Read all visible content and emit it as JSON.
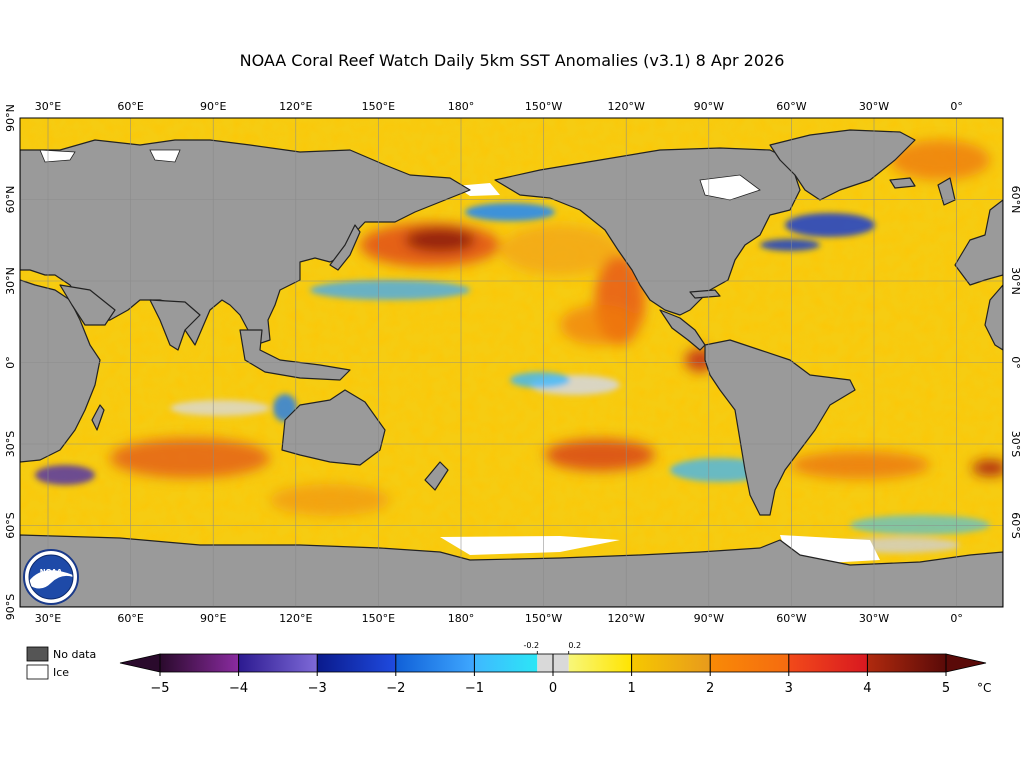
{
  "title": "NOAA Coral Reef Watch Daily 5km SST Anomalies  (v3.1)   8 Apr 2026",
  "map": {
    "lon_labels": [
      "30°E",
      "60°E",
      "90°E",
      "120°E",
      "150°E",
      "180°",
      "150°W",
      "120°W",
      "90°W",
      "60°W",
      "30°W",
      "0°"
    ],
    "lat_labels": [
      "90°N",
      "60°N",
      "30°N",
      "0°",
      "30°S",
      "60°S",
      "90°S"
    ],
    "colors": {
      "land": "#9a9a9a",
      "coast": "#222222",
      "ice": "#ffffff",
      "ocean_base": "#f6cc12",
      "grid": "#888888"
    },
    "logo": {
      "text": "NOAA"
    }
  },
  "legend": {
    "items": [
      {
        "label": "No data",
        "swatch": "#555555"
      },
      {
        "label": "Ice",
        "swatch": "#ffffff"
      }
    ]
  },
  "colorbar": {
    "unit": "°C",
    "ticks": [
      "−5",
      "−4",
      "−3",
      "−2",
      "−1",
      "0",
      "1",
      "2",
      "3",
      "4",
      "5"
    ],
    "small_ticks": [
      "-0.2",
      "0.2"
    ],
    "segments": [
      {
        "from": -5,
        "to": -4,
        "c1": "#2a0a2c",
        "c2": "#8a2ba0"
      },
      {
        "from": -4,
        "to": -3,
        "c1": "#2c1a90",
        "c2": "#7e6ad8"
      },
      {
        "from": -3,
        "to": -2,
        "c1": "#0a1a8c",
        "c2": "#1f4be0"
      },
      {
        "from": -2,
        "to": -1,
        "c1": "#1060d8",
        "c2": "#3fa8ff"
      },
      {
        "from": -1,
        "to": -0.2,
        "c1": "#3fb8ff",
        "c2": "#2ce6f6"
      },
      {
        "from": -0.2,
        "to": 0.2,
        "c1": "#d9d9d9",
        "c2": "#d9d9d9"
      },
      {
        "from": 0.2,
        "to": 1,
        "c1": "#f8f77a",
        "c2": "#ffe400"
      },
      {
        "from": 1,
        "to": 2,
        "c1": "#f6c800",
        "c2": "#e89a1c"
      },
      {
        "from": 2,
        "to": 3,
        "c1": "#f98a06",
        "c2": "#f56b10"
      },
      {
        "from": 3,
        "to": 4,
        "c1": "#f24a1a",
        "c2": "#d81820"
      },
      {
        "from": 4,
        "to": 5,
        "c1": "#b02a0e",
        "c2": "#5a0a08"
      }
    ]
  }
}
